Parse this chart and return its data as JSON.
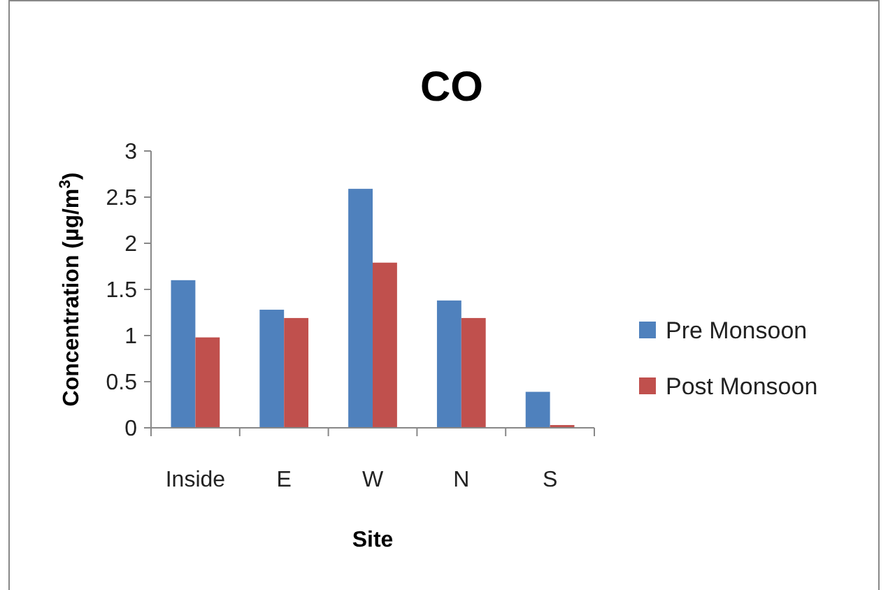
{
  "chart_data": {
    "type": "bar",
    "title": "CO",
    "xlabel": "Site",
    "ylabel": "Concentration (µg/m$^{3}$)",
    "categories": [
      "Inside",
      "E",
      "W",
      "N",
      "S"
    ],
    "series": [
      {
        "name": "Pre Monsoon",
        "color": "#4f81bd",
        "values": [
          1.6,
          1.28,
          2.59,
          1.38,
          0.39
        ]
      },
      {
        "name": "Post Monsoon",
        "color": "#c0504d",
        "values": [
          0.98,
          1.19,
          1.79,
          1.19,
          0.03
        ]
      }
    ],
    "ylim": [
      0,
      3
    ],
    "yticks": [
      0,
      0.5,
      1,
      1.5,
      2,
      2.5,
      3
    ],
    "grid": false,
    "legend": "right"
  }
}
